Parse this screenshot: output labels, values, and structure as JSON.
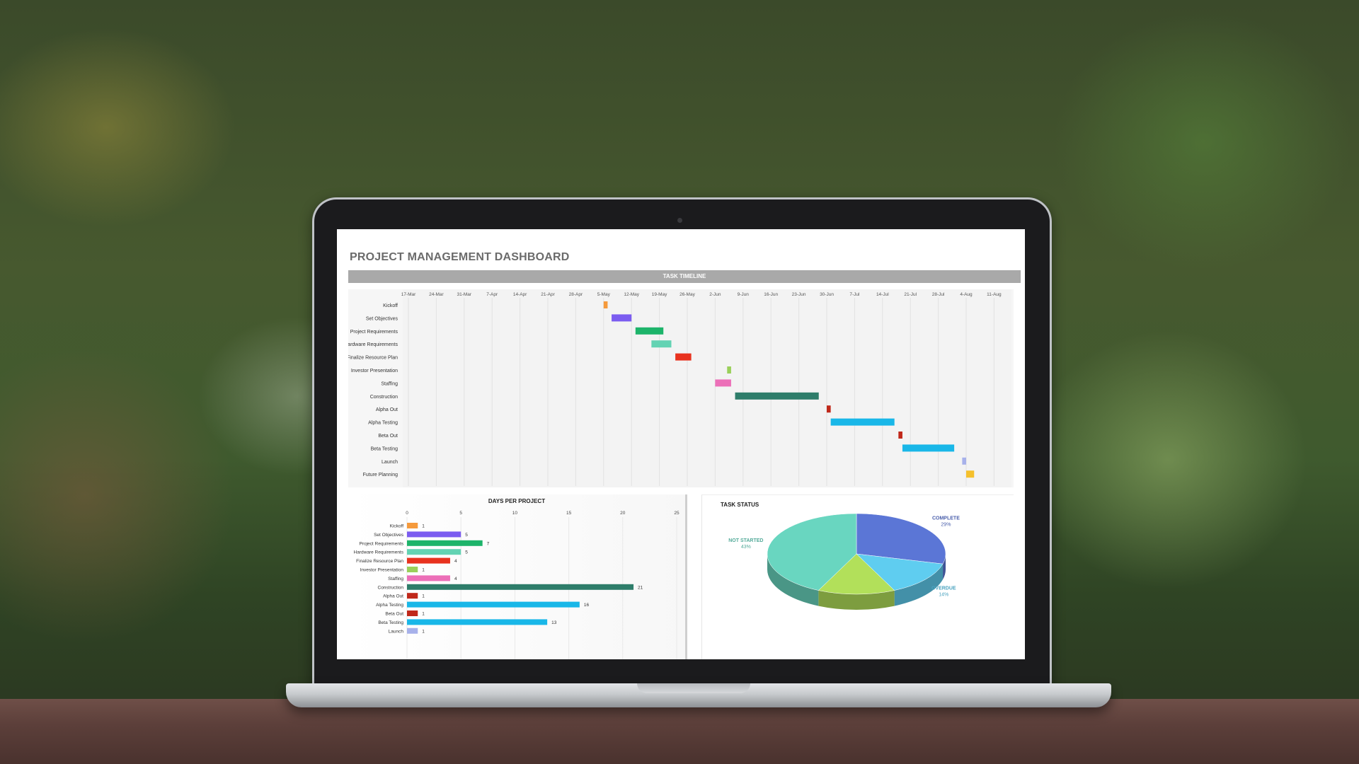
{
  "dashboard": {
    "title": "PROJECT MANAGEMENT DASHBOARD",
    "timeline_header": "TASK TIMELINE",
    "days_title": "DAYS PER PROJECT",
    "status_title": "TASK STATUS"
  },
  "colors": {
    "header_gray": "#a9a9a9",
    "title_gray": "#6b6b6b",
    "background_foliage": "#47592f",
    "table_wood": "#5c3f3a"
  },
  "chart_data": [
    {
      "type": "bar",
      "title": "TASK TIMELINE",
      "x_ticks": [
        "17-Mar",
        "24-Mar",
        "31-Mar",
        "7-Apr",
        "14-Apr",
        "21-Apr",
        "28-Apr",
        "5-May",
        "12-May",
        "19-May",
        "26-May",
        "2-Jun",
        "9-Jun",
        "16-Jun",
        "23-Jun",
        "30-Jun",
        "7-Jul",
        "14-Jul",
        "21-Jul",
        "28-Jul",
        "4-Aug",
        "11-Aug"
      ],
      "categories": [
        "Kickoff",
        "Set Objectives",
        "Project Requirements",
        "Hardware Requirements",
        "Finalize Resource Plan",
        "Investor Presentation",
        "Staffing",
        "Construction",
        "Alpha Out",
        "Alpha Testing",
        "Beta Out",
        "Beta Testing",
        "Launch",
        "Future Planning"
      ],
      "tasks": [
        {
          "task": "Kickoff",
          "start": "5-May",
          "days": 1,
          "color": "#f59a3c"
        },
        {
          "task": "Set Objectives",
          "start": "7-May",
          "days": 5,
          "color": "#7b5cf0"
        },
        {
          "task": "Project Requirements",
          "start": "13-May",
          "days": 7,
          "color": "#1db46a"
        },
        {
          "task": "Hardware Requirements",
          "start": "17-May",
          "days": 5,
          "color": "#63d3b3"
        },
        {
          "task": "Finalize Resource Plan",
          "start": "23-May",
          "days": 4,
          "color": "#e8321e"
        },
        {
          "task": "Investor Presentation",
          "start": "5-Jun",
          "days": 1,
          "color": "#9ad05a"
        },
        {
          "task": "Staffing",
          "start": "2-Jun",
          "days": 4,
          "color": "#ec6fb8"
        },
        {
          "task": "Construction",
          "start": "7-Jun",
          "days": 21,
          "color": "#2e7d6a"
        },
        {
          "task": "Alpha Out",
          "start": "30-Jun",
          "days": 1,
          "color": "#c0281a"
        },
        {
          "task": "Alpha Testing",
          "start": "1-Jul",
          "days": 16,
          "color": "#19b7e8"
        },
        {
          "task": "Beta Out",
          "start": "18-Jul",
          "days": 1,
          "color": "#c0281a"
        },
        {
          "task": "Beta Testing",
          "start": "19-Jul",
          "days": 13,
          "color": "#19b7e8"
        },
        {
          "task": "Launch",
          "start": "3-Aug",
          "days": 1,
          "color": "#a7b1ea"
        },
        {
          "task": "Future Planning",
          "start": "4-Aug",
          "days": 2,
          "color": "#f5c02c"
        }
      ]
    },
    {
      "type": "bar",
      "title": "DAYS PER PROJECT",
      "orientation": "horizontal",
      "xlim": [
        0,
        25
      ],
      "x_ticks": [
        0,
        5,
        10,
        15,
        20,
        25
      ],
      "categories": [
        "Kickoff",
        "Set Objectives",
        "Project Requirements",
        "Hardware Requirements",
        "Finalize Resource Plan",
        "Investor Presentation",
        "Staffing",
        "Construction",
        "Alpha Out",
        "Alpha Testing",
        "Beta Out",
        "Beta Testing",
        "Launch"
      ],
      "values": [
        1,
        5,
        7,
        5,
        4,
        1,
        4,
        21,
        1,
        16,
        1,
        13,
        1
      ],
      "colors": [
        "#f59a3c",
        "#7b5cf0",
        "#1db46a",
        "#63d3b3",
        "#e8321e",
        "#9ad05a",
        "#ec6fb8",
        "#2e7d6a",
        "#c0281a",
        "#19b7e8",
        "#c0281a",
        "#19b7e8",
        "#a7b1ea"
      ]
    },
    {
      "type": "pie",
      "title": "TASK STATUS",
      "slices": [
        {
          "label": "COMPLETE",
          "percent": 29,
          "display": "29%",
          "color": "#5b76d6"
        },
        {
          "label": "OVERDUE",
          "percent": 14,
          "display": "14%",
          "color": "#5fcdf0"
        },
        {
          "label": "",
          "percent": 14,
          "display": "",
          "color": "#b2e05a"
        },
        {
          "label": "NOT STARTED",
          "percent": 43,
          "display": "43%",
          "color": "#69d6c0"
        }
      ]
    }
  ]
}
